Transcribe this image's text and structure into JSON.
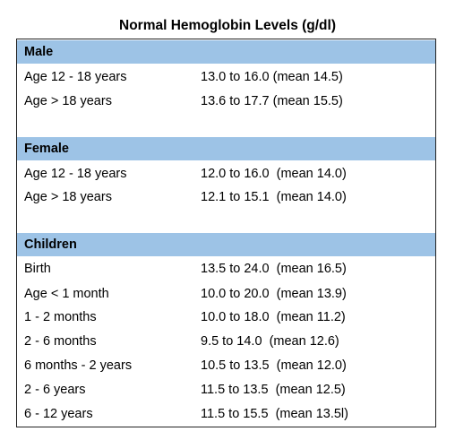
{
  "title": "Normal Hemoglobin Levels (g/dl)",
  "colors": {
    "header_fill": "#9dc3e6",
    "border": "#222222",
    "text": "#000000"
  },
  "sections": [
    {
      "name": "Male",
      "rows": [
        {
          "label": "Age 12 - 18 years",
          "value": "13.0 to 16.0 (mean 14.5)"
        },
        {
          "label": "Age > 18 years",
          "value": "13.6 to 17.7 (mean 15.5)"
        }
      ]
    },
    {
      "name": "Female",
      "rows": [
        {
          "label": "Age 12 - 18 years",
          "value": "12.0 to 16.0  (mean 14.0)"
        },
        {
          "label": "Age > 18 years",
          "value": "12.1 to 15.1  (mean 14.0)"
        }
      ]
    },
    {
      "name": "Children",
      "rows": [
        {
          "label": "Birth",
          "value": "13.5 to 24.0  (mean 16.5)"
        },
        {
          "label": "Age < 1 month",
          "value": "10.0 to 20.0  (mean 13.9)"
        },
        {
          "label": "1 - 2 months",
          "value": "10.0 to 18.0  (mean 11.2)"
        },
        {
          "label": "2 - 6 months",
          "value": "9.5 to 14.0  (mean 12.6)"
        },
        {
          "label": "6 months - 2 years",
          "value": "10.5 to 13.5  (mean 12.0)"
        },
        {
          "label": "2 - 6 years",
          "value": "11.5 to 13.5  (mean 12.5)"
        },
        {
          "label": "6 - 12 years",
          "value": "11.5 to 15.5  (mean 13.5l)"
        }
      ]
    }
  ]
}
